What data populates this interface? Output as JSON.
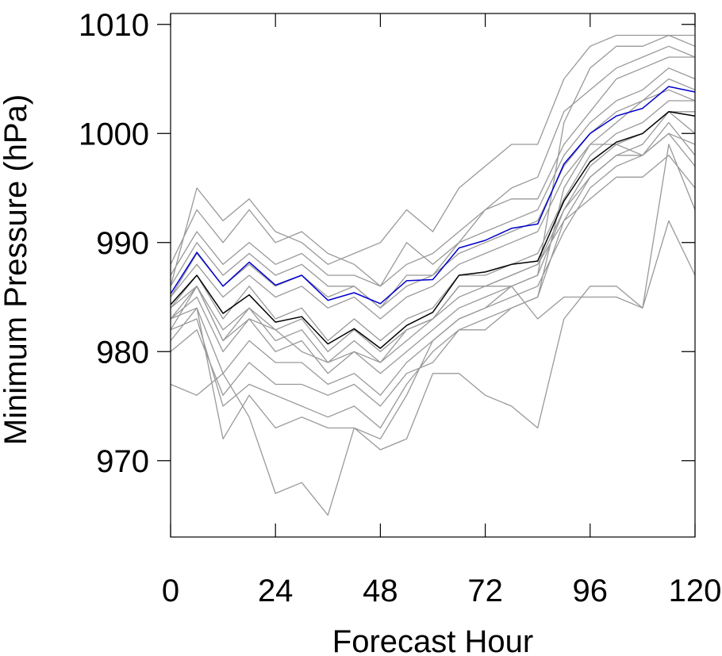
{
  "chart_data": {
    "type": "line",
    "title": "",
    "xlabel": "Forecast Hour",
    "ylabel": "Minimum Pressure (hPa)",
    "xlim": [
      0,
      120
    ],
    "ylim": [
      963,
      1011
    ],
    "x_ticks": [
      0,
      24,
      48,
      72,
      96,
      120
    ],
    "y_ticks": [
      970,
      980,
      990,
      1000,
      1010
    ],
    "grid": false,
    "legend": "none",
    "x": [
      0,
      6,
      12,
      18,
      24,
      30,
      36,
      42,
      48,
      54,
      60,
      66,
      72,
      78,
      84,
      90,
      96,
      102,
      108,
      114,
      120
    ],
    "series": [
      {
        "color": "#0000cc",
        "values": [
          985.3,
          989.1,
          986.0,
          988.2,
          986.1,
          987.0,
          984.7,
          985.4,
          984.4,
          986.5,
          986.6,
          989.5,
          990.2,
          991.3,
          991.7,
          997.2,
          1000.0,
          1001.6,
          1002.3,
          1004.3,
          1003.8
        ]
      },
      {
        "color": "#000000",
        "values": [
          984.3,
          987.0,
          983.5,
          985.2,
          982.7,
          983.2,
          980.7,
          982.1,
          980.3,
          982.4,
          983.6,
          987.0,
          987.3,
          988.0,
          988.3,
          993.8,
          997.4,
          999.2,
          1000.0,
          1002.0,
          1001.6
        ]
      },
      {
        "color": "#999999",
        "values": [
          977,
          976,
          978,
          974,
          967,
          968,
          965,
          973,
          971,
          972,
          978,
          978,
          976,
          975,
          973,
          983,
          986,
          986,
          984,
          992,
          987
        ]
      },
      {
        "color": "#999999",
        "values": [
          986,
          995,
          992,
          994,
          991,
          990,
          988,
          989,
          990,
          993,
          991,
          995,
          997,
          999,
          999,
          1005,
          1008,
          1009,
          1009,
          1009,
          1009
        ]
      },
      {
        "color": "#999999",
        "values": [
          983,
          984,
          972,
          976,
          973,
          974,
          973,
          973,
          972,
          976,
          981,
          983,
          984,
          986,
          987,
          1001,
          1006,
          1008,
          1008,
          1009,
          1008
        ]
      },
      {
        "color": "#999999",
        "values": [
          988,
          993,
          990,
          993,
          990,
          991,
          989,
          988,
          986,
          990,
          988,
          990,
          993,
          995,
          996,
          1002,
          1004,
          1006,
          1007,
          1008,
          1007
        ]
      },
      {
        "color": "#999999",
        "values": [
          982,
          983,
          975,
          977,
          976,
          975,
          974,
          975,
          973,
          977,
          980,
          982,
          983,
          984,
          985,
          995,
          999,
          999,
          998,
          1000,
          997
        ]
      },
      {
        "color": "#999999",
        "values": [
          984,
          986,
          981,
          983,
          982,
          980,
          979,
          980,
          979,
          981,
          983,
          985,
          986,
          986,
          983,
          985,
          985,
          985,
          984,
          999,
          993
        ]
      },
      {
        "color": "#999999",
        "values": [
          987,
          991,
          988,
          990,
          988,
          989,
          987,
          987,
          986,
          988,
          989,
          991,
          993,
          994,
          994,
          999,
          1002,
          1005,
          1006,
          1007,
          1007
        ]
      },
      {
        "color": "#999999",
        "values": [
          980,
          982,
          976,
          979,
          977,
          977,
          976,
          977,
          975,
          978,
          979,
          982,
          982,
          984,
          985,
          992,
          996,
          998,
          999,
          1002,
          1000
        ]
      },
      {
        "color": "#999999",
        "values": [
          985,
          988,
          985,
          987,
          985,
          986,
          984,
          985,
          983,
          985,
          986,
          988,
          989,
          990,
          991,
          996,
          999,
          1001,
          1003,
          1005,
          1004
        ]
      },
      {
        "color": "#999999",
        "values": [
          983,
          985,
          980,
          983,
          980,
          981,
          978,
          980,
          978,
          980,
          982,
          984,
          985,
          986,
          987,
          993,
          997,
          999,
          1000,
          1002,
          1002
        ]
      },
      {
        "color": "#999999",
        "values": [
          986,
          990,
          987,
          989,
          987,
          988,
          986,
          986,
          984,
          987,
          987,
          990,
          991,
          992,
          993,
          998,
          1001,
          1003,
          1004,
          1006,
          1005
        ]
      },
      {
        "color": "#999999",
        "values": [
          981,
          984,
          978,
          981,
          979,
          979,
          977,
          978,
          976,
          979,
          981,
          983,
          984,
          985,
          986,
          991,
          995,
          997,
          998,
          1001,
          998
        ]
      },
      {
        "color": "#999999",
        "values": [
          984,
          987,
          983,
          986,
          983,
          984,
          981,
          983,
          981,
          983,
          984,
          987,
          987,
          988,
          989,
          994,
          998,
          1000,
          1001,
          1003,
          1003
        ]
      },
      {
        "color": "#999999",
        "values": [
          982,
          986,
          981,
          984,
          981,
          982,
          979,
          981,
          979,
          982,
          983,
          986,
          986,
          987,
          988,
          992,
          994,
          996,
          996,
          998,
          995
        ]
      },
      {
        "color": "#999999",
        "values": [
          985,
          989,
          986,
          988,
          986,
          987,
          985,
          986,
          984,
          986,
          987,
          989,
          990,
          991,
          992,
          997,
          1000,
          1002,
          1003,
          1004,
          1003
        ]
      },
      {
        "color": "#999999",
        "values": [
          983,
          986,
          982,
          984,
          982,
          983,
          980,
          982,
          980,
          982,
          983,
          986,
          986,
          987,
          988,
          993,
          996,
          998,
          998,
          1000,
          999
        ]
      }
    ]
  }
}
